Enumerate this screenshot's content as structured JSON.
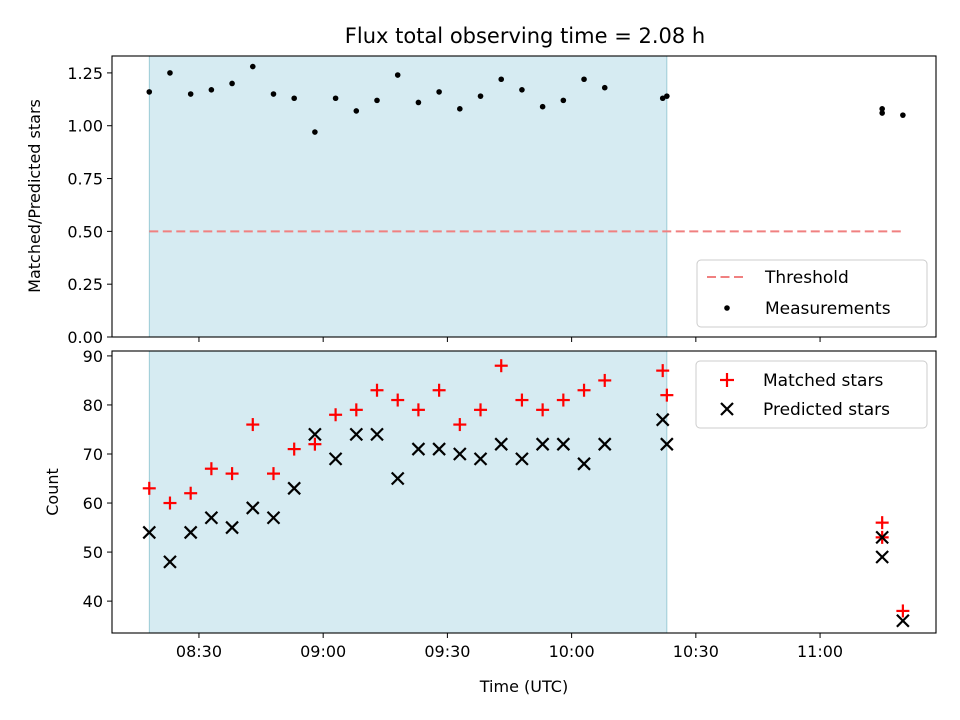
{
  "title": "Flux total observing time = 2.08 h",
  "chart_data": [
    {
      "type": "scatter",
      "ylabel": "Matched/Predicted stars",
      "ylim": [
        0.0,
        1.33
      ],
      "yticks": [
        "0.00",
        "0.25",
        "0.50",
        "0.75",
        "1.00",
        "1.25"
      ],
      "ytick_values": [
        0.0,
        0.25,
        0.5,
        0.75,
        1.0,
        1.25
      ],
      "shaded_region": {
        "x_start": "08:18",
        "x_end": "10:23",
        "color": "#add8e6"
      },
      "legend": {
        "placement": "lower-right",
        "threshold_label": "Threshold",
        "measurements_label": "Measurements"
      },
      "threshold": {
        "name": "Threshold",
        "value": 0.5,
        "x_start": "08:18",
        "x_end": "11:20",
        "color": "#f08080",
        "style": "dashed"
      },
      "series": [
        {
          "name": "Measurements",
          "color": "#000000",
          "marker": "dot",
          "x": [
            "08:18",
            "08:23",
            "08:28",
            "08:33",
            "08:38",
            "08:43",
            "08:48",
            "08:53",
            "08:58",
            "09:03",
            "09:08",
            "09:13",
            "09:18",
            "09:23",
            "09:28",
            "09:33",
            "09:38",
            "09:43",
            "09:48",
            "09:53",
            "09:58",
            "10:03",
            "10:08",
            "10:22",
            "10:23",
            "11:15",
            "11:15",
            "11:20"
          ],
          "y": [
            1.16,
            1.25,
            1.15,
            1.17,
            1.2,
            1.28,
            1.15,
            1.13,
            0.97,
            1.13,
            1.07,
            1.12,
            1.24,
            1.11,
            1.16,
            1.08,
            1.14,
            1.22,
            1.17,
            1.09,
            1.12,
            1.22,
            1.18,
            1.13,
            1.14,
            1.06,
            1.08,
            1.05
          ]
        }
      ]
    },
    {
      "type": "scatter",
      "xlabel": "Time (UTC)",
      "ylabel": "Count",
      "ylim": [
        33.5,
        91
      ],
      "yticks": [
        "40",
        "50",
        "60",
        "70",
        "80",
        "90"
      ],
      "ytick_values": [
        40,
        50,
        60,
        70,
        80,
        90
      ],
      "xlim": [
        "08:09",
        "11:28"
      ],
      "xticks": [
        "08:30",
        "09:00",
        "09:30",
        "10:00",
        "10:30",
        "11:00"
      ],
      "shaded_region": {
        "x_start": "08:18",
        "x_end": "10:23",
        "color": "#add8e6"
      },
      "legend": {
        "placement": "upper-right",
        "matched_label": "Matched stars",
        "predicted_label": "Predicted stars"
      },
      "series": [
        {
          "name": "Matched stars",
          "color": "#ff0000",
          "marker": "plus",
          "x": [
            "08:18",
            "08:23",
            "08:28",
            "08:33",
            "08:38",
            "08:43",
            "08:48",
            "08:53",
            "08:58",
            "09:03",
            "09:08",
            "09:13",
            "09:18",
            "09:23",
            "09:28",
            "09:33",
            "09:38",
            "09:43",
            "09:48",
            "09:53",
            "09:58",
            "10:03",
            "10:08",
            "10:22",
            "10:23",
            "11:15",
            "11:15",
            "11:20"
          ],
          "y": [
            63,
            60,
            62,
            67,
            66,
            76,
            66,
            71,
            72,
            78,
            79,
            83,
            81,
            79,
            83,
            76,
            79,
            88,
            81,
            79,
            81,
            83,
            85,
            87,
            82,
            56,
            53,
            38
          ]
        },
        {
          "name": "Predicted stars",
          "color": "#000000",
          "marker": "x",
          "x": [
            "08:18",
            "08:23",
            "08:28",
            "08:33",
            "08:38",
            "08:43",
            "08:48",
            "08:53",
            "08:58",
            "09:03",
            "09:08",
            "09:13",
            "09:18",
            "09:23",
            "09:28",
            "09:33",
            "09:38",
            "09:43",
            "09:48",
            "09:53",
            "09:58",
            "10:03",
            "10:08",
            "10:22",
            "10:23",
            "11:15",
            "11:15",
            "11:20"
          ],
          "y": [
            54,
            48,
            54,
            57,
            55,
            59,
            57,
            63,
            74,
            69,
            74,
            74,
            65,
            71,
            71,
            70,
            69,
            72,
            69,
            72,
            72,
            68,
            72,
            77,
            72,
            53,
            49,
            36
          ]
        }
      ]
    }
  ]
}
